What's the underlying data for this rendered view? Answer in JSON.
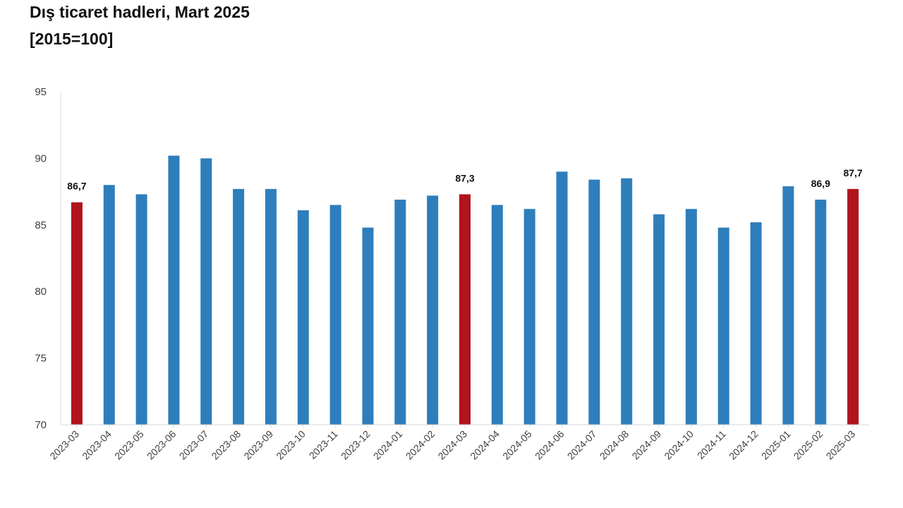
{
  "title": "Dış ticaret hadleri, Mart 2025",
  "subtitle": "[2015=100]",
  "colors": {
    "normal": "#2e7ebc",
    "highlight": "#b0141c",
    "axis": "#d9d9d9",
    "text": "#404040"
  },
  "chart_data": {
    "type": "bar",
    "title": "Dış ticaret hadleri, Mart 2025",
    "subtitle": "[2015=100]",
    "xlabel": "",
    "ylabel": "",
    "ylim": [
      70,
      95
    ],
    "yticks": [
      70,
      75,
      80,
      85,
      90,
      95
    ],
    "grid": false,
    "categories": [
      "2023-03",
      "2023-04",
      "2023-05",
      "2023-06",
      "2023-07",
      "2023-08",
      "2023-09",
      "2023-10",
      "2023-11",
      "2023-12",
      "2024-01",
      "2024-02",
      "2024-03",
      "2024-04",
      "2024-05",
      "2024-06",
      "2024-07",
      "2024-08",
      "2024-09",
      "2024-10",
      "2024-11",
      "2024-12",
      "2025-01",
      "2025-02",
      "2025-03"
    ],
    "values": [
      86.7,
      88.0,
      87.3,
      90.2,
      90.0,
      87.7,
      87.7,
      86.1,
      86.5,
      84.8,
      86.9,
      87.2,
      87.3,
      86.5,
      86.2,
      89.0,
      88.4,
      88.5,
      85.8,
      86.2,
      84.8,
      85.2,
      87.9,
      86.9,
      87.7
    ],
    "highlighted": [
      "2023-03",
      "2024-03",
      "2025-03"
    ],
    "data_labels": [
      {
        "category": "2023-03",
        "text": "86,7"
      },
      {
        "category": "2024-03",
        "text": "87,3"
      },
      {
        "category": "2025-02",
        "text": "86,9"
      },
      {
        "category": "2025-03",
        "text": "87,7"
      }
    ]
  }
}
